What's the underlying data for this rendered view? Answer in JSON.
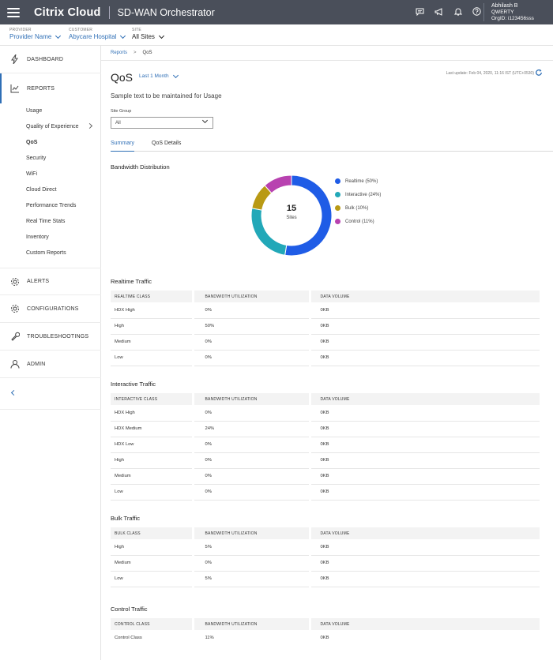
{
  "topbar": {
    "brand": "Citrix Cloud",
    "product": "SD-WAN Orchestrator",
    "icons": [
      "chat-icon",
      "megaphone-icon",
      "bell-icon",
      "help-icon"
    ],
    "user_name": "Abhilash B",
    "user_org": "QWERTY",
    "user_orgid": "OrgID: i123456sss"
  },
  "context": {
    "provider_label": "PROVIDER",
    "provider_value": "Provider Name",
    "customer_label": "CUSTOMER",
    "customer_value": "Abycare Hospital",
    "site_label": "SITE",
    "site_value": "All Sites"
  },
  "sidebar": {
    "main": [
      {
        "label": "DASHBOARD",
        "icon": "bolt-icon"
      },
      {
        "label": "REPORTS",
        "icon": "chart-icon"
      },
      {
        "label": "ALERTS",
        "icon": "gear-icon"
      },
      {
        "label": "CONFIGURATIONS",
        "icon": "gear-icon"
      },
      {
        "label": "TROUBLESHOOTINGS",
        "icon": "wrench-icon"
      },
      {
        "label": "ADMIN",
        "icon": "user-icon"
      }
    ],
    "reports_sub": [
      "Usage",
      "Quality of Experience",
      "QoS",
      "Security",
      "WiFi",
      "Cloud Direct",
      "Performance Trends",
      "Real Time Stats",
      "Inventory",
      "Custom Reports"
    ]
  },
  "breadcrumb": {
    "parent": "Reports",
    "current": "QoS"
  },
  "page": {
    "title": "QoS",
    "range": "Last 1 Month",
    "last_update": "Last update: Feb 04, 2020, 11:16 IST (UTC+0530)",
    "description": "Sample text to be maintained for Usage",
    "site_group_label": "Site Group",
    "site_group_value": "All"
  },
  "tabs": [
    "Summary",
    "QoS Details"
  ],
  "bandwidth": {
    "title": "Bandwidth Distribution",
    "center_value": "15",
    "center_label": "Sites"
  },
  "chart_data": {
    "type": "pie",
    "title": "Bandwidth Distribution",
    "categories": [
      "Realtime (50%)",
      "Interactive (24%)",
      "Bulk (10%)",
      "Control (11%)"
    ],
    "values": [
      50,
      24,
      10,
      11
    ],
    "colors": [
      "#1f5ce6",
      "#22a8b8",
      "#b99a14",
      "#b842b0"
    ],
    "legend_position": "right"
  },
  "tables": {
    "realtime": {
      "title": "Realtime Traffic",
      "headers": [
        "REALTIME CLASS",
        "BANDWIDTH UTILIZATION",
        "DATA VOLUME"
      ],
      "rows": [
        [
          "HDX High",
          "0%",
          "0KB"
        ],
        [
          "High",
          "50%",
          "0KB"
        ],
        [
          "Medium",
          "0%",
          "0KB"
        ],
        [
          "Low",
          "0%",
          "0KB"
        ]
      ]
    },
    "interactive": {
      "title": "Interactive Traffic",
      "headers": [
        "INTERACTIVE CLASS",
        "BANDWIDTH UTILIZATION",
        "DATA VOLUME"
      ],
      "rows": [
        [
          "HDX High",
          "0%",
          "0KB"
        ],
        [
          "HDX Medium",
          "24%",
          "0KB"
        ],
        [
          "HDX Low",
          "0%",
          "0KB"
        ],
        [
          "High",
          "0%",
          "0KB"
        ],
        [
          "Medium",
          "0%",
          "0KB"
        ],
        [
          "Low",
          "0%",
          "0KB"
        ]
      ]
    },
    "bulk": {
      "title": "Bulk Traffic",
      "headers": [
        "BULK CLASS",
        "BANDWIDTH UTILIZATION",
        "DATA VOLUME"
      ],
      "rows": [
        [
          "High",
          "5%",
          "0KB"
        ],
        [
          "Medium",
          "0%",
          "0KB"
        ],
        [
          "Low",
          "5%",
          "0KB"
        ]
      ]
    },
    "control": {
      "title": "Control Traffic",
      "headers": [
        "CONTROL CLASS",
        "BANDWIDTH UTILIZATION",
        "DATA VOLUME"
      ],
      "rows": [
        [
          "Control Class",
          "11%",
          "0KB"
        ]
      ]
    }
  }
}
